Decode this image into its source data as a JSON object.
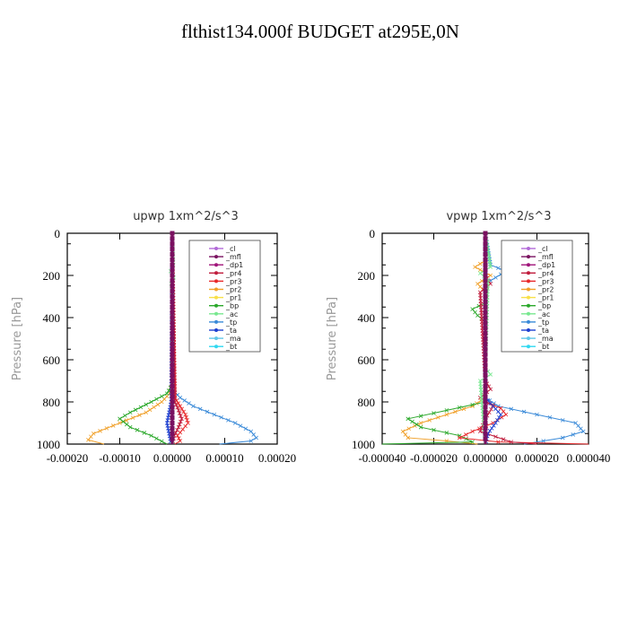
{
  "title": "flthist134.000f  BUDGET at295E,0N",
  "legend_colors": {
    "_cl": "#b26ad8",
    "_mfl": "#7a1060",
    "_dp1": "#a0147a",
    "_pr4": "#c01c3c",
    "_pr3": "#e8282a",
    "_pr2": "#f0a02a",
    "_pr1": "#f8e048",
    "_bp": "#2aa82a",
    "_ac": "#78e890",
    "_tp": "#3a8ad8",
    "_ta": "#1e40d0",
    "_ma": "#62c8e8",
    "_bt": "#30d8f0"
  },
  "chart_data": [
    {
      "type": "line",
      "title": "upwp   1xm^2/s^3",
      "ylabel": "Pressure [hPa]",
      "xlim": [
        -0.0002,
        0.0002
      ],
      "ylim": [
        1000,
        0
      ],
      "xticks": [
        -0.0002,
        -0.0001,
        0.0,
        0.0001,
        0.0002
      ],
      "xtick_labels": [
        "-0.00020",
        "-0.00010",
        "0.00000",
        "0.00010",
        "0.00020"
      ],
      "yticks": [
        0,
        200,
        400,
        600,
        800,
        1000
      ],
      "ytick_labels": [
        "0",
        "200",
        "400",
        "600",
        "800",
        "1000"
      ],
      "legend": [
        "_cl",
        "_mfl",
        "_dp1",
        "_pr4",
        "_pr3",
        "_pr2",
        "_pr1",
        "_bp",
        "_ac",
        "_tp",
        "_ta",
        "_ma",
        "_bt"
      ],
      "series": [
        {
          "name": "_pr2",
          "p": [
            0,
            700,
            760,
            800,
            850,
            900,
            950,
            980,
            1000
          ],
          "values": [
            0,
            0,
            -5e-06,
            -2e-05,
            -5e-05,
            -0.0001,
            -0.00015,
            -0.00016,
            -0.00013
          ]
        },
        {
          "name": "_bp",
          "p": [
            0,
            720,
            760,
            800,
            850,
            880,
            920,
            960,
            1000
          ],
          "values": [
            0,
            0,
            -1e-05,
            -4e-05,
            -8e-05,
            -0.0001,
            -8e-05,
            -4e-05,
            -1e-05
          ]
        },
        {
          "name": "_tp",
          "p": [
            0,
            740,
            780,
            820,
            860,
            900,
            940,
            970,
            985,
            1000
          ],
          "values": [
            0,
            0,
            1.5e-05,
            4e-05,
            8e-05,
            0.00012,
            0.00015,
            0.00016,
            0.00015,
            9e-05
          ]
        },
        {
          "name": "_pr3",
          "p": [
            0,
            780,
            820,
            860,
            900,
            930,
            960,
            985,
            1000
          ],
          "values": [
            0,
            5e-06,
            1.5e-05,
            2.5e-05,
            3e-05,
            2e-05,
            1e-05,
            1.5e-05,
            5e-06
          ]
        },
        {
          "name": "_pr4",
          "p": [
            0,
            800,
            840,
            880,
            920,
            960,
            1000
          ],
          "values": [
            0,
            5e-06,
            1.2e-05,
            1.8e-05,
            1.2e-05,
            4e-06,
            0
          ]
        },
        {
          "name": "_ta",
          "p": [
            0,
            800,
            850,
            900,
            950,
            1000
          ],
          "values": [
            0,
            -2e-06,
            -6e-06,
            -1e-05,
            -6e-06,
            -2e-06
          ]
        },
        {
          "name": "_ac",
          "p": [
            0,
            150,
            180,
            210,
            240,
            280,
            1000
          ],
          "values": [
            0,
            2e-06,
            -3e-06,
            3e-06,
            -2e-06,
            0,
            0
          ]
        },
        {
          "name": "_dp1",
          "p": [
            0,
            1000
          ],
          "values": [
            0,
            0
          ]
        },
        {
          "name": "_mfl",
          "p": [
            0,
            1000
          ],
          "values": [
            0,
            0
          ]
        }
      ]
    },
    {
      "type": "line",
      "title": "vpwp   1xm^2/s^3",
      "ylabel": "Pressure [hPa]",
      "xlim": [
        -4e-05,
        4e-05
      ],
      "ylim": [
        1000,
        0
      ],
      "xticks": [
        -4e-05,
        -2e-05,
        0.0,
        2e-05,
        4e-05
      ],
      "xtick_labels": [
        "-0.000040",
        "-0.000020",
        "0.000000",
        "0.000020",
        "0.000040"
      ],
      "yticks": [
        0,
        200,
        400,
        600,
        800,
        1000
      ],
      "ytick_labels": [
        "0",
        "200",
        "400",
        "600",
        "800",
        "1000"
      ],
      "legend": [
        "_cl",
        "_mfl",
        "_dp1",
        "_pr4",
        "_pr3",
        "_pr2",
        "_pr1",
        "_bp",
        "_ac",
        "_tp",
        "_ta",
        "_ma",
        "_bt"
      ],
      "series": [
        {
          "name": "_pr2",
          "p": [
            0,
            130,
            160,
            200,
            240,
            280,
            780,
            820,
            860,
            900,
            940,
            970,
            985,
            1000
          ],
          "values": [
            0,
            0,
            -4e-06,
            2e-06,
            -3e-06,
            0,
            0,
            -5e-06,
            -1.5e-05,
            -2.5e-05,
            -3.2e-05,
            -3e-05,
            -1.5e-05,
            -3e-06
          ]
        },
        {
          "name": "_bp",
          "p": [
            0,
            330,
            360,
            390,
            420,
            800,
            840,
            880,
            920,
            960,
            990,
            1000
          ],
          "values": [
            0,
            0,
            -5e-06,
            -3e-06,
            0,
            0,
            -1.5e-05,
            -3e-05,
            -2.5e-05,
            -1e-05,
            -5e-06,
            -4e-05
          ]
        },
        {
          "name": "_tp",
          "p": [
            0,
            150,
            180,
            210,
            240,
            780,
            820,
            860,
            900,
            940,
            970,
            1000
          ],
          "values": [
            0,
            2e-06,
            8e-06,
            4e-06,
            0,
            0,
            5e-06,
            2e-05,
            3.5e-05,
            3.8e-05,
            3e-05,
            1.5e-05
          ]
        },
        {
          "name": "_pr3",
          "p": [
            0,
            800,
            830,
            860,
            900,
            940,
            970,
            990,
            1000
          ],
          "values": [
            0,
            0,
            6e-06,
            8e-06,
            3e-06,
            -5e-06,
            -1e-05,
            5e-06,
            4e-05
          ]
        },
        {
          "name": "_pr4",
          "p": [
            0,
            200,
            240,
            280,
            700,
            740,
            780,
            820,
            880,
            940,
            990,
            1000
          ],
          "values": [
            0,
            0,
            2e-06,
            -2e-06,
            0,
            2e-06,
            -2e-06,
            3e-06,
            0,
            -2e-06,
            1e-05,
            2e-05
          ]
        },
        {
          "name": "_ta",
          "p": [
            0,
            780,
            820,
            860,
            900,
            950,
            1000
          ],
          "values": [
            0,
            0,
            3e-06,
            6e-06,
            4e-06,
            1e-06,
            0
          ]
        },
        {
          "name": "_ac",
          "p": [
            0,
            160,
            190,
            220,
            640,
            670,
            700,
            1000
          ],
          "values": [
            0,
            2e-06,
            -2e-06,
            1e-06,
            0,
            2e-06,
            -2e-06,
            0
          ]
        },
        {
          "name": "_dp1",
          "p": [
            0,
            1000
          ],
          "values": [
            0,
            0
          ]
        },
        {
          "name": "_mfl",
          "p": [
            0,
            1000
          ],
          "values": [
            0,
            0
          ]
        }
      ]
    }
  ]
}
